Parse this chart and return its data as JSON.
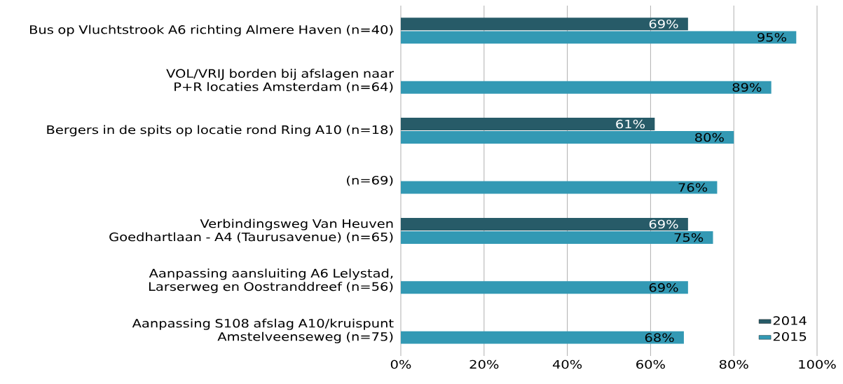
{
  "chart_data": {
    "type": "bar",
    "orientation": "horizontal",
    "categories": [
      "Bus op Vluchtstrook A6 richting Almere Haven (n=40)",
      "VOL/VRIJ borden bij afslagen naar P+R locaties Amsterdam (n=64)",
      "Bergers in de spits op locatie rond Ring A10 (n=18)",
      "(n=69)",
      "Verbindingsweg Van Heuven Goedhartlaan - A4 (Taurusavenue) (n=65)",
      "Aanpassing aansluiting A6 Lelystad, Larserweg en Oostranddreef (n=56)",
      "Aanpassing S108 afslag A10/kruispunt Amstelveenseweg (n=75)"
    ],
    "series": [
      {
        "name": "2014",
        "color": "#275b68",
        "values": [
          69,
          null,
          61,
          null,
          69,
          null,
          null
        ],
        "value_labels": [
          "69%",
          null,
          "61%",
          null,
          "69%",
          null,
          null
        ]
      },
      {
        "name": "2015",
        "color": "#3399b4",
        "values": [
          95,
          89,
          80,
          76,
          75,
          69,
          68
        ],
        "value_labels": [
          "95%",
          "89%",
          "80%",
          "76%",
          "75%",
          "69%",
          "68%"
        ]
      }
    ],
    "xlim": [
      0,
      100
    ],
    "xticks": [
      {
        "value": 0,
        "label": "0%"
      },
      {
        "value": 20,
        "label": "20%"
      },
      {
        "value": 40,
        "label": "40%"
      },
      {
        "value": 60,
        "label": "60%"
      },
      {
        "value": 80,
        "label": "80%"
      },
      {
        "value": 100,
        "label": "100%"
      }
    ],
    "grid": "x",
    "legend": "bottom right"
  }
}
